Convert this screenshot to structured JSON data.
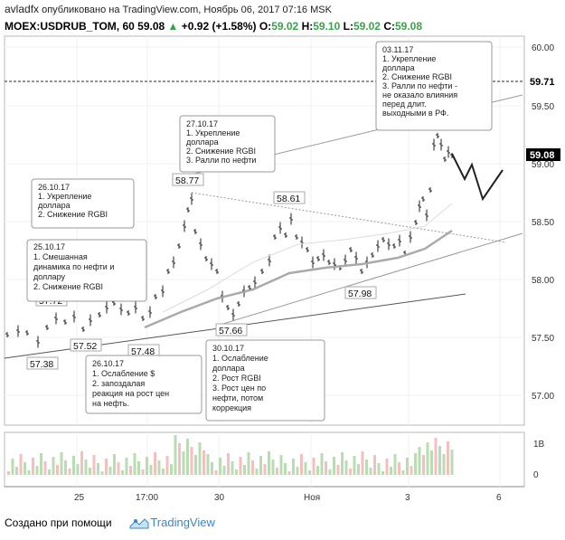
{
  "header": {
    "user": "avladfx",
    "published": "опубликовано на TradingView.com, Ноябрь 06, 2017 07:16 MSK",
    "symbol": "MOEX:USDRUB_TOM, 60",
    "last": "59.08",
    "change": "+0.92 (+1.58%)",
    "o_label": "O:",
    "o": "59.02",
    "h_label": "H:",
    "h": "59.10",
    "l_label": "L:",
    "l": "59.02",
    "c_label": "C:",
    "c": "59.08",
    "up_color": "#3aa24a"
  },
  "price_axis": {
    "ticks": [
      "60.00",
      "59.50",
      "59.00",
      "58.50",
      "58.00",
      "57.50",
      "57.00"
    ],
    "badge_dash": "59.71",
    "badge_last": "59.08",
    "volume_tick_top": "1B",
    "volume_tick_zero": "0"
  },
  "time_axis": {
    "ticks": [
      "25",
      "17:00",
      "30",
      "Ноя",
      "3",
      "6"
    ]
  },
  "price_labels": [
    "57.72",
    "57.52",
    "57.38",
    "57.48",
    "57.66",
    "58.77",
    "58.61",
    "57.98"
  ],
  "notes": [
    {
      "lines": [
        "03.11.17",
        "1. Укрепление",
        "доллара",
        "2. Снижение RGBI",
        "3. Ралли по нефти -",
        "не оказало влияния",
        "перед длит.",
        "выходными в РФ."
      ]
    },
    {
      "lines": [
        "27.10.17",
        "1. Укрепление",
        "доллара",
        "2. Снижение RGBI",
        "3. Ралли по нефти"
      ]
    },
    {
      "lines": [
        "26.10.17",
        "1. Укрепление",
        "доллара",
        "2. Снижение RGBI"
      ]
    },
    {
      "lines": [
        "25.10.17",
        "1. Смешанная",
        "динамика по нефти и",
        "доллару",
        "2. Снижение RGBI"
      ]
    },
    {
      "lines": [
        "26.10.17",
        "1. Ослабление $",
        "2. запоздалая",
        "реакция на рост цен",
        "на нефть."
      ]
    },
    {
      "lines": [
        "30.10.17",
        "1. Ослабление",
        "доллара",
        "2. Рост RGBI",
        "3. Рост цен по",
        "нефти, потом",
        "коррекция"
      ]
    }
  ],
  "footer": {
    "created": "Создано при помощи",
    "brand": "TradingView"
  },
  "colors": {
    "badge": "#000000",
    "brand": "#3b86c6",
    "volume_up": "#b9dcb2",
    "volume_down": "#f3bfbf"
  }
}
